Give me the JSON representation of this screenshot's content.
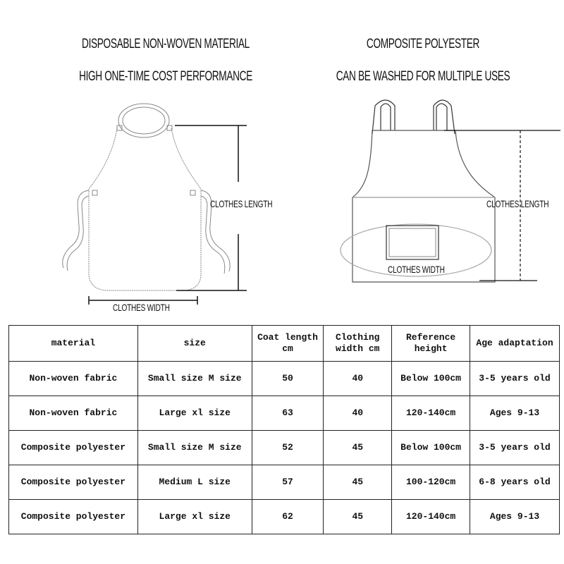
{
  "captions": {
    "left_line1": "DISPOSABLE NON-WOVEN MATERIAL",
    "left_line2": "HIGH ONE-TIME COST PERFORMANCE",
    "right_line1": "COMPOSITE POLYESTER",
    "right_line2": "CAN BE WASHED FOR MULTIPLE USES"
  },
  "diagram_labels": {
    "left_length": "CLOTHES LENGTH",
    "left_width": "CLOTHES WIDTH",
    "right_length": "CLOTHES LENGTH",
    "right_width": "CLOTHES WIDTH"
  },
  "table": {
    "headers": [
      "material",
      "size",
      "Coat length cm",
      "Clothing width cm",
      "Reference height",
      "Age adaptation"
    ],
    "rows": [
      [
        "Non-woven fabric",
        "Small size M size",
        "50",
        "40",
        "Below 100cm",
        "3-5 years old"
      ],
      [
        "Non-woven fabric",
        "Large xl size",
        "63",
        "40",
        "120-140cm",
        "Ages 9-13"
      ],
      [
        "Composite polyester",
        "Small size M size",
        "52",
        "45",
        "Below 100cm",
        "3-5 years old"
      ],
      [
        "Composite polyester",
        "Medium L size",
        "57",
        "45",
        "100-120cm",
        "6-8 years old"
      ],
      [
        "Composite polyester",
        "Large xl size",
        "62",
        "45",
        "120-140cm",
        "Ages 9-13"
      ]
    ]
  }
}
